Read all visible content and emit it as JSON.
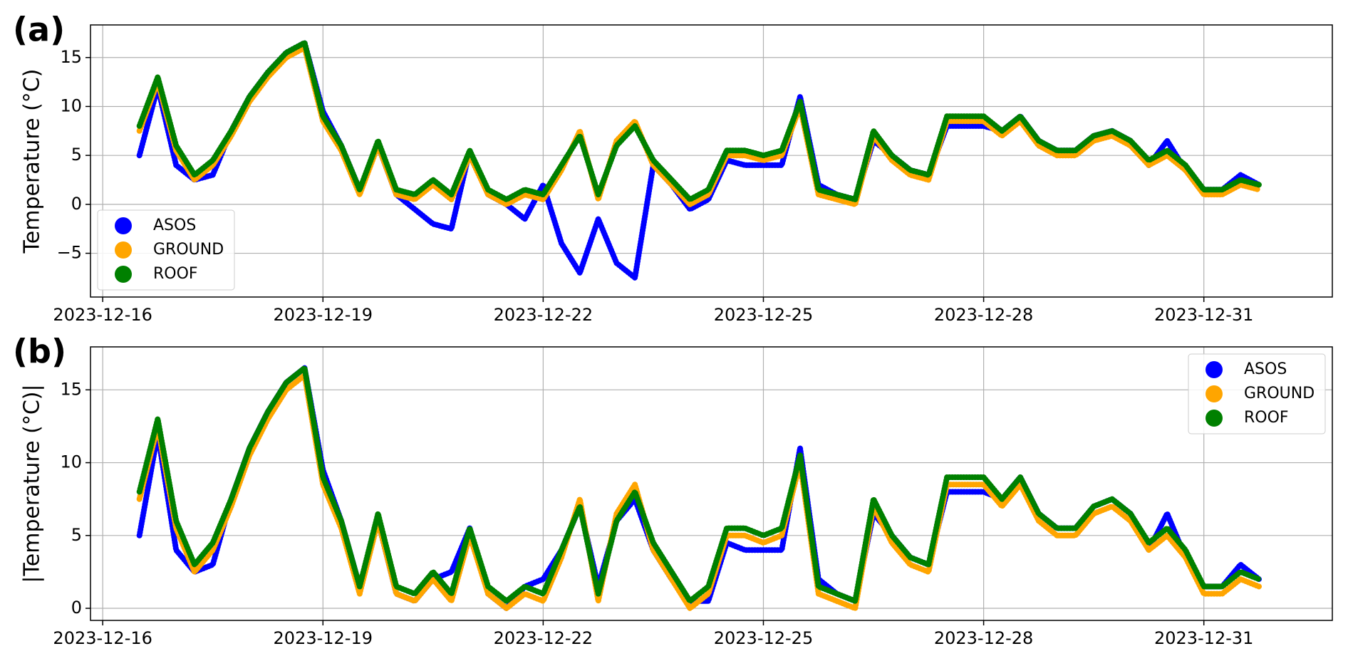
{
  "chart_data": [
    {
      "type": "scatter",
      "panel_label": "(a)",
      "ylabel": "Temperature (°C)",
      "grid": true,
      "legend": "lower left",
      "xlim": [
        "2023-12-15 20:00",
        "2024-01-01 18:00"
      ],
      "ylim": [
        -9.47,
        18.33
      ],
      "xticks": [
        "2023-12-16",
        "2023-12-19",
        "2023-12-22",
        "2023-12-25",
        "2023-12-28",
        "2023-12-31"
      ],
      "yticks": [
        {
          "value": -5,
          "label": "−5"
        },
        0,
        5,
        10,
        15
      ],
      "x": [
        "2023-12-16 12:00",
        "2023-12-16 18:00",
        "2023-12-17 00:00",
        "2023-12-17 06:00",
        "2023-12-17 12:00",
        "2023-12-17 18:00",
        "2023-12-18 00:00",
        "2023-12-18 06:00",
        "2023-12-18 12:00",
        "2023-12-18 18:00",
        "2023-12-19 00:00",
        "2023-12-19 06:00",
        "2023-12-19 12:00",
        "2023-12-19 18:00",
        "2023-12-20 00:00",
        "2023-12-20 06:00",
        "2023-12-20 12:00",
        "2023-12-20 18:00",
        "2023-12-21 00:00",
        "2023-12-21 06:00",
        "2023-12-21 12:00",
        "2023-12-21 18:00",
        "2023-12-22 00:00",
        "2023-12-22 06:00",
        "2023-12-22 12:00",
        "2023-12-22 18:00",
        "2023-12-23 00:00",
        "2023-12-23 06:00",
        "2023-12-23 12:00",
        "2023-12-23 18:00",
        "2023-12-24 00:00",
        "2023-12-24 06:00",
        "2023-12-24 12:00",
        "2023-12-24 18:00",
        "2023-12-25 00:00",
        "2023-12-25 06:00",
        "2023-12-25 12:00",
        "2023-12-25 18:00",
        "2023-12-26 00:00",
        "2023-12-26 06:00",
        "2023-12-26 12:00",
        "2023-12-26 18:00",
        "2023-12-27 00:00",
        "2023-12-27 06:00",
        "2023-12-27 12:00",
        "2023-12-27 18:00",
        "2023-12-28 00:00",
        "2023-12-28 06:00",
        "2023-12-28 12:00",
        "2023-12-28 18:00",
        "2023-12-29 00:00",
        "2023-12-29 06:00",
        "2023-12-29 12:00",
        "2023-12-29 18:00",
        "2023-12-30 00:00",
        "2023-12-30 06:00",
        "2023-12-30 12:00",
        "2023-12-30 18:00",
        "2023-12-31 00:00",
        "2023-12-31 06:00",
        "2023-12-31 12:00",
        "2023-12-31 18:00"
      ],
      "series": [
        {
          "name": "ASOS",
          "color": "#0000ff",
          "values": [
            5,
            12,
            4,
            2.5,
            3,
            7.5,
            11,
            13.5,
            15.5,
            16.5,
            9.5,
            6,
            1.5,
            6,
            1,
            -0.5,
            -2,
            -2.5,
            5.5,
            1,
            0,
            -1.5,
            2,
            -4,
            -7,
            -1.5,
            -6,
            -7.5,
            4,
            2,
            -0.5,
            0.5,
            4.5,
            4,
            4,
            4,
            11,
            2,
            1,
            0.5,
            6.5,
            5,
            3.5,
            3,
            8,
            8,
            8,
            7.5,
            9,
            6.5,
            5.5,
            5.5,
            7,
            7.5,
            6.5,
            4,
            6.5,
            3.5,
            1.5,
            1.5,
            3,
            2
          ]
        },
        {
          "name": "GROUND",
          "color": "#ffa500",
          "values": [
            7.5,
            12.5,
            5.5,
            2.5,
            4,
            7,
            10.5,
            13,
            15,
            16,
            8.5,
            5.5,
            1,
            6,
            1,
            0.5,
            2,
            0.5,
            5,
            1,
            0,
            1,
            0.5,
            3.5,
            7.5,
            0.5,
            6.5,
            8.5,
            4,
            2,
            0,
            1,
            5,
            5,
            4.5,
            5,
            10,
            1,
            0.5,
            0,
            7,
            4.5,
            3,
            2.5,
            8.5,
            8.5,
            8.5,
            7,
            8.5,
            6,
            5,
            5,
            6.5,
            7,
            6,
            4,
            5,
            3.5,
            1,
            1,
            2,
            1.5
          ]
        },
        {
          "name": "ROOF",
          "color": "#008000",
          "values": [
            8,
            13,
            6,
            3,
            4.5,
            7.5,
            11,
            13.5,
            15.5,
            16.5,
            9,
            6,
            1.5,
            6.5,
            1.5,
            1,
            2.5,
            1,
            5.5,
            1.5,
            0.5,
            1.5,
            1,
            4,
            7,
            1,
            6,
            8,
            4.5,
            2.5,
            0.5,
            1.5,
            5.5,
            5.5,
            5,
            5.5,
            10.5,
            1.5,
            1,
            0.5,
            7.5,
            5,
            3.5,
            3,
            9,
            9,
            9,
            7.5,
            9,
            6.5,
            5.5,
            5.5,
            7,
            7.5,
            6.5,
            4.5,
            5.5,
            4,
            1.5,
            1.5,
            2.5,
            2
          ]
        }
      ]
    },
    {
      "type": "scatter",
      "panel_label": "(b)",
      "ylabel": "|Temperature (°C)|",
      "grid": true,
      "legend": "upper right",
      "xlim": [
        "2023-12-15 20:00",
        "2024-01-01 18:00"
      ],
      "ylim": [
        -0.83,
        17.95
      ],
      "xticks": [
        "2023-12-16",
        "2023-12-19",
        "2023-12-22",
        "2023-12-25",
        "2023-12-28",
        "2023-12-31"
      ],
      "yticks": [
        0,
        5,
        10,
        15
      ],
      "x": [
        "2023-12-16 12:00",
        "2023-12-16 18:00",
        "2023-12-17 00:00",
        "2023-12-17 06:00",
        "2023-12-17 12:00",
        "2023-12-17 18:00",
        "2023-12-18 00:00",
        "2023-12-18 06:00",
        "2023-12-18 12:00",
        "2023-12-18 18:00",
        "2023-12-19 00:00",
        "2023-12-19 06:00",
        "2023-12-19 12:00",
        "2023-12-19 18:00",
        "2023-12-20 00:00",
        "2023-12-20 06:00",
        "2023-12-20 12:00",
        "2023-12-20 18:00",
        "2023-12-21 00:00",
        "2023-12-21 06:00",
        "2023-12-21 12:00",
        "2023-12-21 18:00",
        "2023-12-22 00:00",
        "2023-12-22 06:00",
        "2023-12-22 12:00",
        "2023-12-22 18:00",
        "2023-12-23 00:00",
        "2023-12-23 06:00",
        "2023-12-23 12:00",
        "2023-12-23 18:00",
        "2023-12-24 00:00",
        "2023-12-24 06:00",
        "2023-12-24 12:00",
        "2023-12-24 18:00",
        "2023-12-25 00:00",
        "2023-12-25 06:00",
        "2023-12-25 12:00",
        "2023-12-25 18:00",
        "2023-12-26 00:00",
        "2023-12-26 06:00",
        "2023-12-26 12:00",
        "2023-12-26 18:00",
        "2023-12-27 00:00",
        "2023-12-27 06:00",
        "2023-12-27 12:00",
        "2023-12-27 18:00",
        "2023-12-28 00:00",
        "2023-12-28 06:00",
        "2023-12-28 12:00",
        "2023-12-28 18:00",
        "2023-12-29 00:00",
        "2023-12-29 06:00",
        "2023-12-29 12:00",
        "2023-12-29 18:00",
        "2023-12-30 00:00",
        "2023-12-30 06:00",
        "2023-12-30 12:00",
        "2023-12-30 18:00",
        "2023-12-31 00:00",
        "2023-12-31 06:00",
        "2023-12-31 12:00",
        "2023-12-31 18:00"
      ],
      "series": [
        {
          "name": "ASOS",
          "color": "#0000ff",
          "values": [
            5,
            12,
            4,
            2.5,
            3,
            7.5,
            11,
            13.5,
            15.5,
            16.5,
            9.5,
            6,
            1.5,
            6,
            1,
            0.5,
            2,
            2.5,
            5.5,
            1,
            0,
            1.5,
            2,
            4,
            7,
            1.5,
            6,
            7.5,
            4,
            2,
            0.5,
            0.5,
            4.5,
            4,
            4,
            4,
            11,
            2,
            1,
            0.5,
            6.5,
            5,
            3.5,
            3,
            8,
            8,
            8,
            7.5,
            9,
            6.5,
            5.5,
            5.5,
            7,
            7.5,
            6.5,
            4,
            6.5,
            3.5,
            1.5,
            1.5,
            3,
            2
          ]
        },
        {
          "name": "GROUND",
          "color": "#ffa500",
          "values": [
            7.5,
            12.5,
            5.5,
            2.5,
            4,
            7,
            10.5,
            13,
            15,
            16,
            8.5,
            5.5,
            1,
            6,
            1,
            0.5,
            2,
            0.5,
            5,
            1,
            0,
            1,
            0.5,
            3.5,
            7.5,
            0.5,
            6.5,
            8.5,
            4,
            2,
            0,
            1,
            5,
            5,
            4.5,
            5,
            10,
            1,
            0.5,
            0,
            7,
            4.5,
            3,
            2.5,
            8.5,
            8.5,
            8.5,
            7,
            8.5,
            6,
            5,
            5,
            6.5,
            7,
            6,
            4,
            5,
            3.5,
            1,
            1,
            2,
            1.5
          ]
        },
        {
          "name": "ROOF",
          "color": "#008000",
          "values": [
            8,
            13,
            6,
            3,
            4.5,
            7.5,
            11,
            13.5,
            15.5,
            16.5,
            9,
            6,
            1.5,
            6.5,
            1.5,
            1,
            2.5,
            1,
            5.5,
            1.5,
            0.5,
            1.5,
            1,
            4,
            7,
            1,
            6,
            8,
            4.5,
            2.5,
            0.5,
            1.5,
            5.5,
            5.5,
            5,
            5.5,
            10.5,
            1.5,
            1,
            0.5,
            7.5,
            5,
            3.5,
            3,
            9,
            9,
            9,
            7.5,
            9,
            6.5,
            5.5,
            5.5,
            7,
            7.5,
            6.5,
            4.5,
            5.5,
            4,
            1.5,
            1.5,
            2.5,
            2
          ]
        }
      ]
    }
  ]
}
